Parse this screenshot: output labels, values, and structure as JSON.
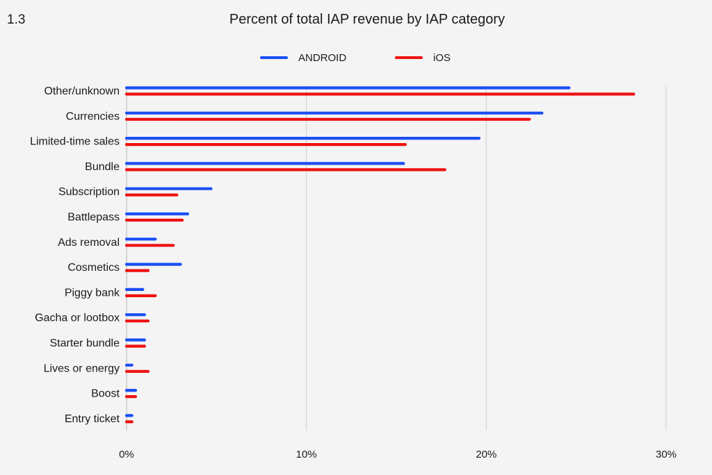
{
  "figure_number": "1.3",
  "colors": {
    "android": "#1a4ff5",
    "ios": "#ee1111",
    "grid": "#cccccc",
    "text": "#1a1a1a",
    "background": "#f4f4f4"
  },
  "chart_data": {
    "type": "bar",
    "orientation": "horizontal",
    "title": "Percent of total IAP revenue by IAP category",
    "xlabel": "",
    "ylabel": "",
    "xlim": [
      0,
      30
    ],
    "xticks": [
      0,
      10,
      20,
      30
    ],
    "xtick_labels": [
      "0%",
      "10%",
      "20%",
      "30%"
    ],
    "grid": true,
    "legend_position": "top-center",
    "categories": [
      "Other/unknown",
      "Currencies",
      "Limited-time sales",
      "Bundle",
      "Subscription",
      "Battlepass",
      "Ads removal",
      "Cosmetics",
      "Piggy bank",
      "Gacha or lootbox",
      "Starter bundle",
      "Lives or energy",
      "Boost",
      "Entry ticket"
    ],
    "series": [
      {
        "name": "ANDROID",
        "color": "#1a4ff5",
        "values": [
          24.6,
          23.1,
          19.6,
          15.4,
          4.7,
          3.4,
          1.6,
          3.0,
          0.9,
          1.0,
          1.0,
          0.3,
          0.5,
          0.3
        ]
      },
      {
        "name": "iOS",
        "color": "#ee1111",
        "values": [
          28.2,
          22.4,
          15.5,
          17.7,
          2.8,
          3.1,
          2.6,
          1.2,
          1.6,
          1.2,
          1.0,
          1.2,
          0.5,
          0.3
        ]
      }
    ]
  }
}
